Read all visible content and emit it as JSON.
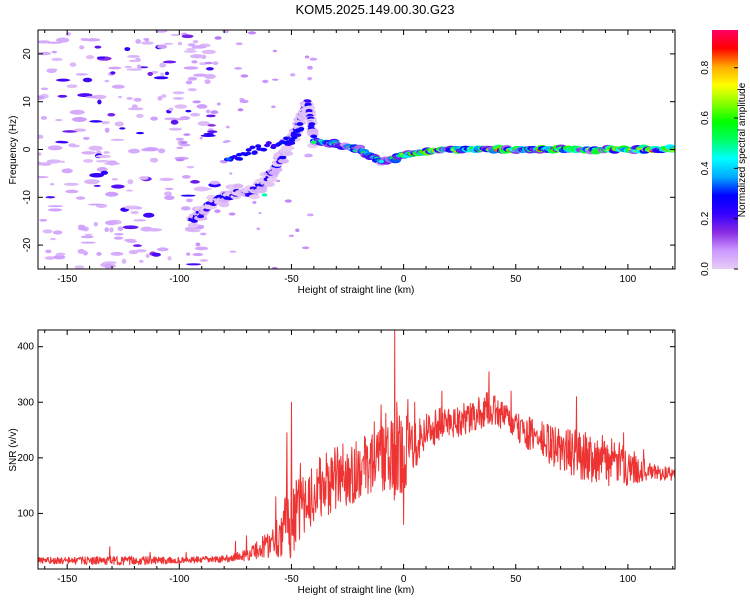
{
  "title": "KOM5.2025.149.00.30.G23",
  "chart_data": [
    {
      "type": "heatmap",
      "name": "spectrogram",
      "xlabel": "Height of straight line (km)",
      "ylabel": "Frequency (Hz)",
      "xlim": [
        -163,
        121
      ],
      "ylim": [
        -25,
        25
      ],
      "x_ticks": [
        -150,
        -100,
        -50,
        0,
        50,
        100
      ],
      "y_ticks": [
        -20,
        -10,
        0,
        10,
        20
      ],
      "x_tick_labels": [
        "-150",
        "-100",
        "-50",
        "0",
        "50",
        "100"
      ],
      "y_tick_labels": [
        "-20",
        "-10",
        "0",
        "10",
        "20"
      ],
      "colorbar": {
        "label": "Normalized spectral amplitude",
        "range": [
          0,
          0.95
        ],
        "ticks": [
          0.0,
          0.2,
          0.4,
          0.6,
          0.8
        ],
        "tick_labels": [
          "0.0",
          "0.2",
          "0.4",
          "0.6",
          "0.8"
        ],
        "colors": [
          "#e6ccf5",
          "#cc99ff",
          "#8a2be2",
          "#3300ff",
          "#0000ff",
          "#00aaff",
          "#00ffff",
          "#00ff66",
          "#00ff00",
          "#88ff00",
          "#ffff00",
          "#ffaa00",
          "#ff0000",
          "#ff0066"
        ]
      },
      "trace_path": [
        [
          -95,
          -15
        ],
        [
          -85,
          -11
        ],
        [
          -75,
          -9
        ],
        [
          -68,
          -9
        ],
        [
          -62,
          -7
        ],
        [
          -56,
          -3
        ],
        [
          -50,
          2
        ],
        [
          -46,
          6
        ],
        [
          -43,
          10
        ],
        [
          -40,
          2
        ],
        [
          -30,
          1
        ],
        [
          -20,
          0
        ],
        [
          -10,
          -2.5
        ],
        [
          -5,
          -2
        ],
        [
          0,
          -1
        ],
        [
          20,
          0
        ],
        [
          50,
          0
        ],
        [
          80,
          0
        ],
        [
          100,
          0
        ],
        [
          121,
          0
        ]
      ],
      "branch_path": [
        [
          -78,
          -2
        ],
        [
          -65,
          0
        ],
        [
          -50,
          2
        ],
        [
          -45,
          5
        ]
      ]
    },
    {
      "type": "line",
      "name": "snr",
      "xlabel": "Height of straight line (km)",
      "ylabel": "SNR (v/v)",
      "xlim": [
        -163,
        121
      ],
      "ylim": [
        0,
        430
      ],
      "x_ticks": [
        -150,
        -100,
        -50,
        0,
        50,
        100
      ],
      "y_ticks": [
        100,
        200,
        300,
        400
      ],
      "x_tick_labels": [
        "-150",
        "-100",
        "-50",
        "0",
        "50",
        "100"
      ],
      "y_tick_labels": [
        "100",
        "200",
        "300",
        "400"
      ],
      "color": "#ee3333",
      "envelope": {
        "x": [
          -163,
          -120,
          -100,
          -80,
          -70,
          -60,
          -55,
          -50,
          -45,
          -40,
          -30,
          -20,
          -10,
          -5,
          0,
          10,
          20,
          30,
          38,
          45,
          50,
          60,
          70,
          80,
          90,
          100,
          110,
          121
        ],
        "mean": [
          15,
          15,
          15,
          18,
          25,
          45,
          65,
          90,
          110,
          140,
          160,
          180,
          200,
          190,
          210,
          250,
          265,
          270,
          290,
          275,
          255,
          235,
          215,
          205,
          195,
          185,
          175,
          170
        ],
        "spread": [
          6,
          8,
          6,
          6,
          10,
          25,
          45,
          70,
          55,
          55,
          60,
          55,
          55,
          80,
          70,
          35,
          30,
          30,
          30,
          25,
          25,
          35,
          40,
          45,
          45,
          35,
          15,
          12
        ]
      },
      "spikes": [
        [
          -131,
          40
        ],
        [
          -113,
          30
        ],
        [
          -97,
          30
        ],
        [
          -75,
          50
        ],
        [
          -70,
          60
        ],
        [
          -57,
          130
        ],
        [
          -52,
          245
        ],
        [
          -50,
          300
        ],
        [
          -46,
          190
        ],
        [
          -42,
          165
        ],
        [
          -38,
          165
        ],
        [
          -32,
          200
        ],
        [
          -27,
          225
        ],
        [
          -22,
          215
        ],
        [
          -17,
          235
        ],
        [
          -13,
          265
        ],
        [
          -10,
          295
        ],
        [
          -8,
          280
        ],
        [
          -5,
          225
        ],
        [
          -4,
          430
        ],
        [
          -3,
          300
        ],
        [
          0,
          80
        ],
        [
          2,
          305
        ],
        [
          5,
          300
        ],
        [
          17,
          320
        ],
        [
          25,
          285
        ],
        [
          38,
          355
        ],
        [
          48,
          320
        ],
        [
          77,
          310
        ],
        [
          98,
          80
        ],
        [
          98,
          245
        ],
        [
          107,
          215
        ]
      ]
    }
  ]
}
